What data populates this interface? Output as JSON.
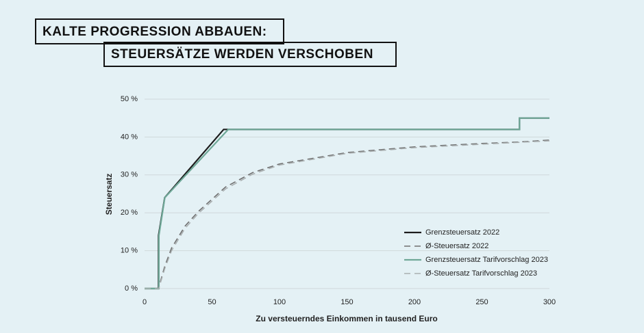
{
  "chart_data": {
    "type": "line",
    "title": "KALTE PROGRESSION ABBAUEN:",
    "subtitle": "STEUERSÄTZE WERDEN VERSCHOBEN",
    "x_label": "Zu versteuerndes Einkommen in tausend Euro",
    "y_label": "Steuersatz",
    "xlim": [
      0,
      300
    ],
    "xticks": [
      0,
      50,
      100,
      150,
      200,
      250,
      300
    ],
    "ylim": [
      0,
      50
    ],
    "yticks": [
      {
        "value": 0,
        "label": "0 %"
      },
      {
        "value": 10,
        "label": "10 %"
      },
      {
        "value": 20,
        "label": "20 %"
      },
      {
        "value": 30,
        "label": "30 %"
      },
      {
        "value": 40,
        "label": "40 %"
      },
      {
        "value": 50,
        "label": "50 %"
      }
    ],
    "grid": true,
    "legend": "lower right",
    "series": [
      {
        "name": "Grenzsteuersatz 2022",
        "color": "#1c1c1c",
        "dash": false,
        "x": [
          0,
          10.347,
          10.347,
          14.926,
          58.596,
          277.826,
          277.826,
          300
        ],
        "values": [
          0,
          0,
          14,
          24,
          42,
          42,
          45,
          45
        ]
      },
      {
        "name": "Ø-Steuersatz 2022",
        "color": "#6f6f6f",
        "dash": true,
        "x": [
          0,
          10.347,
          12,
          15,
          20,
          30,
          40,
          50,
          60,
          80,
          100,
          150,
          200,
          250,
          277.826,
          300
        ],
        "values": [
          0,
          0,
          2.2,
          5.9,
          10.7,
          16.5,
          20.4,
          23.6,
          26.8,
          30.6,
          32.9,
          35.9,
          37.4,
          38.3,
          38.7,
          39.2
        ]
      },
      {
        "name": "Grenzsteuersatz Tarifvorschlag 2023",
        "color": "#6fa898",
        "dash": false,
        "x": [
          0,
          10.632,
          10.632,
          15,
          61.972,
          277.826,
          277.826,
          300
        ],
        "values": [
          0,
          0,
          14,
          24,
          42,
          42,
          45,
          45
        ]
      },
      {
        "name": "Ø-Steuersatz Tarifvorschlag 2023",
        "color": "#a9afb0",
        "dash": true,
        "x": [
          0,
          10.632,
          12,
          15,
          20,
          30,
          40,
          50,
          60,
          80,
          100,
          150,
          200,
          250,
          277.826,
          300
        ],
        "values": [
          0,
          0,
          1.8,
          5.3,
          10.0,
          15.9,
          19.9,
          23.1,
          26.3,
          30.2,
          32.6,
          35.7,
          37.2,
          38.1,
          38.6,
          39.0
        ]
      }
    ]
  }
}
